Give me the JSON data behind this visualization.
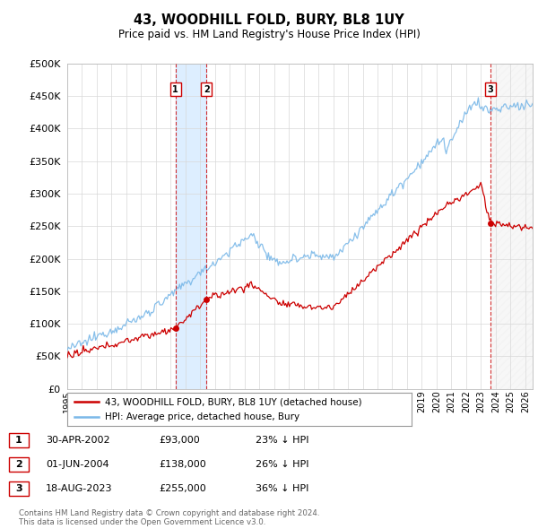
{
  "title": "43, WOODHILL FOLD, BURY, BL8 1UY",
  "subtitle": "Price paid vs. HM Land Registry's House Price Index (HPI)",
  "ylim": [
    0,
    500000
  ],
  "yticks": [
    0,
    50000,
    100000,
    150000,
    200000,
    250000,
    300000,
    350000,
    400000,
    450000,
    500000
  ],
  "hpi_color": "#7ab8e8",
  "price_color": "#cc0000",
  "vline_color": "#cc0000",
  "shade_color": "#ddeeff",
  "hatch_color": "#dddddd",
  "sales": [
    {
      "date": 2002.33,
      "price": 93000,
      "label": "1"
    },
    {
      "date": 2004.42,
      "price": 138000,
      "label": "2"
    },
    {
      "date": 2023.63,
      "price": 255000,
      "label": "3"
    }
  ],
  "legend_entries": [
    {
      "label": "43, WOODHILL FOLD, BURY, BL8 1UY (detached house)",
      "color": "#cc0000"
    },
    {
      "label": "HPI: Average price, detached house, Bury",
      "color": "#7ab8e8"
    }
  ],
  "table_rows": [
    {
      "num": "1",
      "date": "30-APR-2002",
      "price": "£93,000",
      "hpi": "23% ↓ HPI"
    },
    {
      "num": "2",
      "date": "01-JUN-2004",
      "price": "£138,000",
      "hpi": "26% ↓ HPI"
    },
    {
      "num": "3",
      "date": "18-AUG-2023",
      "price": "£255,000",
      "hpi": "36% ↓ HPI"
    }
  ],
  "footer": "Contains HM Land Registry data © Crown copyright and database right 2024.\nThis data is licensed under the Open Government Licence v3.0.",
  "background_color": "#ffffff",
  "grid_color": "#d8d8d8",
  "xlim_start": 1995,
  "xlim_end": 2026.5
}
